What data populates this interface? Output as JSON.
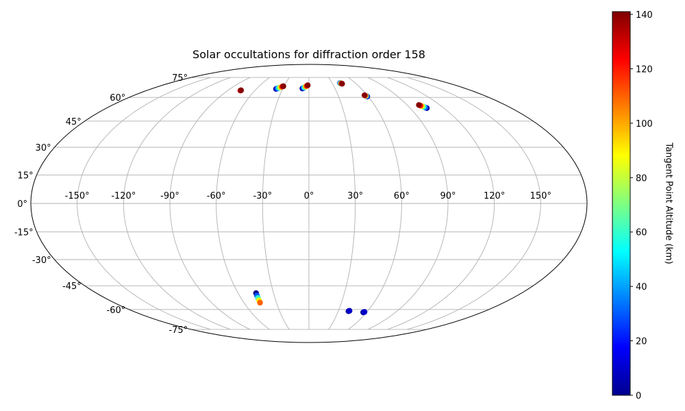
{
  "chart_data": {
    "type": "scatter",
    "projection": "mollweide",
    "title": "Solar occultations for diffraction order 158",
    "xlabel": "",
    "ylabel": "",
    "lon_ticks": [
      {
        "value": -150,
        "label": "-150°"
      },
      {
        "value": -120,
        "label": "-120°"
      },
      {
        "value": -90,
        "label": "-90°"
      },
      {
        "value": -60,
        "label": "-60°"
      },
      {
        "value": -30,
        "label": "-30°"
      },
      {
        "value": 0,
        "label": "0°"
      },
      {
        "value": 30,
        "label": "30°"
      },
      {
        "value": 60,
        "label": "60°"
      },
      {
        "value": 90,
        "label": "90°"
      },
      {
        "value": 120,
        "label": "120°"
      },
      {
        "value": 150,
        "label": "150°"
      }
    ],
    "lat_ticks": [
      {
        "value": 75,
        "label": "75°"
      },
      {
        "value": 60,
        "label": "60°"
      },
      {
        "value": 45,
        "label": "45°"
      },
      {
        "value": 30,
        "label": "30°"
      },
      {
        "value": 15,
        "label": "15°"
      },
      {
        "value": 0,
        "label": "0°"
      },
      {
        "value": -15,
        "label": "-15°"
      },
      {
        "value": -30,
        "label": "-30°"
      },
      {
        "value": -45,
        "label": "-45°"
      },
      {
        "value": -60,
        "label": "-60°"
      },
      {
        "value": -75,
        "label": "-75°"
      }
    ],
    "grid": true,
    "colorbar": {
      "label": "Tangent Point Altitude (km)",
      "min": 0,
      "max": 141,
      "ticks": [
        0,
        20,
        40,
        60,
        80,
        100,
        120,
        140
      ],
      "colormap": "jet",
      "position": "right"
    },
    "tracks": [
      {
        "lon": [
          -76,
          -75.8,
          -75.6
        ],
        "lat": [
          64.8,
          64.9,
          65.0
        ],
        "alt": [
          128,
          134,
          140
        ]
      },
      {
        "lon": [
          -37.5,
          -36.5,
          -35.5,
          -34.5,
          -33.5,
          -32.5,
          -31.5,
          -30.8
        ],
        "lat": [
          66.0,
          66.3,
          66.6,
          66.9,
          67.2,
          67.5,
          67.8,
          68.0
        ],
        "alt": [
          5,
          25,
          45,
          65,
          85,
          105,
          125,
          140
        ]
      },
      {
        "lon": [
          -7.5,
          -6.5,
          -5.5,
          -4.5,
          -3.5,
          -2.5,
          -1.5
        ],
        "lat": [
          66.3,
          66.7,
          67.1,
          67.5,
          67.9,
          68.3,
          68.7
        ],
        "alt": [
          3,
          25,
          50,
          75,
          100,
          120,
          140
        ]
      },
      {
        "lon": [
          40.2,
          40.6,
          41.0,
          41.4,
          41.8,
          42.2
        ],
        "lat": [
          70.4,
          70.3,
          70.2,
          70.1,
          70.0,
          69.9
        ],
        "alt": [
          20,
          50,
          80,
          110,
          130,
          140
        ]
      },
      {
        "lon": [
          59.0,
          58.6,
          58.2,
          57.8,
          57.3
        ],
        "lat": [
          60.6,
          60.8,
          61.0,
          61.2,
          61.5
        ],
        "alt": [
          5,
          30,
          70,
          110,
          140
        ]
      },
      {
        "lon": [
          104.8,
          104.0,
          103.2,
          102.4,
          101.6,
          100.8
        ],
        "lat": [
          53.0,
          53.4,
          53.8,
          54.2,
          54.6,
          55.0
        ],
        "alt": [
          5,
          30,
          60,
          90,
          120,
          140
        ]
      },
      {
        "lon": [
          -44.8,
          -44.9,
          -45.0,
          -45.1,
          -45.2
        ],
        "lat": [
          -49.5,
          -51.0,
          -52.5,
          -54.0,
          -55.5
        ],
        "alt": [
          2,
          30,
          60,
          90,
          110
        ]
      },
      {
        "lon": [
          40.5,
          41.0,
          41.3
        ],
        "lat": [
          -61.2,
          -61.0,
          -60.9
        ],
        "alt": [
          2,
          6,
          10
        ]
      },
      {
        "lon": [
          56.5,
          57.0,
          57.5
        ],
        "lat": [
          -62.0,
          -61.8,
          -61.7
        ],
        "alt": [
          2,
          6,
          10
        ]
      }
    ]
  }
}
